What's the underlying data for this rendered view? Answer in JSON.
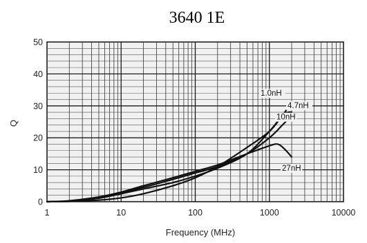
{
  "chart_data": {
    "type": "line",
    "title": "3640 1E",
    "xlabel": "Frequency  (MHz)",
    "ylabel": "Q",
    "x_scale": "log",
    "xlim": [
      1,
      10000
    ],
    "ylim": [
      0,
      50
    ],
    "x_ticks": [
      "1",
      "10",
      "100",
      "1000",
      "10000"
    ],
    "y_ticks": [
      "0",
      "10",
      "20",
      "30",
      "40",
      "50"
    ],
    "grid": true,
    "series": [
      {
        "name": "1.0nH",
        "x": [
          1,
          2,
          5,
          10,
          20,
          50,
          100,
          200,
          500,
          1000,
          1500,
          2000
        ],
        "y": [
          0,
          0.1,
          0.5,
          1.2,
          2.5,
          5,
          7.5,
          11,
          17,
          22,
          27,
          31
        ]
      },
      {
        "name": "4.7nH",
        "x": [
          1,
          2,
          5,
          10,
          20,
          50,
          100,
          200,
          500,
          1000,
          1500,
          1800,
          2000
        ],
        "y": [
          0,
          0.2,
          1.1,
          2.5,
          4,
          6,
          8,
          10.5,
          15,
          22,
          27,
          28,
          28
        ]
      },
      {
        "name": "10nH",
        "x": [
          1,
          2,
          5,
          10,
          20,
          50,
          100,
          200,
          500,
          1000,
          1500,
          2000
        ],
        "y": [
          0,
          0.2,
          1.3,
          2.8,
          4.5,
          7,
          9,
          11,
          15,
          20,
          24,
          27
        ]
      },
      {
        "name": "27nH",
        "x": [
          1,
          2,
          5,
          10,
          20,
          50,
          100,
          200,
          500,
          1000,
          1300,
          1600,
          2000
        ],
        "y": [
          0,
          0.3,
          1.5,
          3,
          5,
          7.5,
          9.5,
          11.5,
          15,
          17.5,
          18,
          16.5,
          14
        ]
      }
    ]
  }
}
